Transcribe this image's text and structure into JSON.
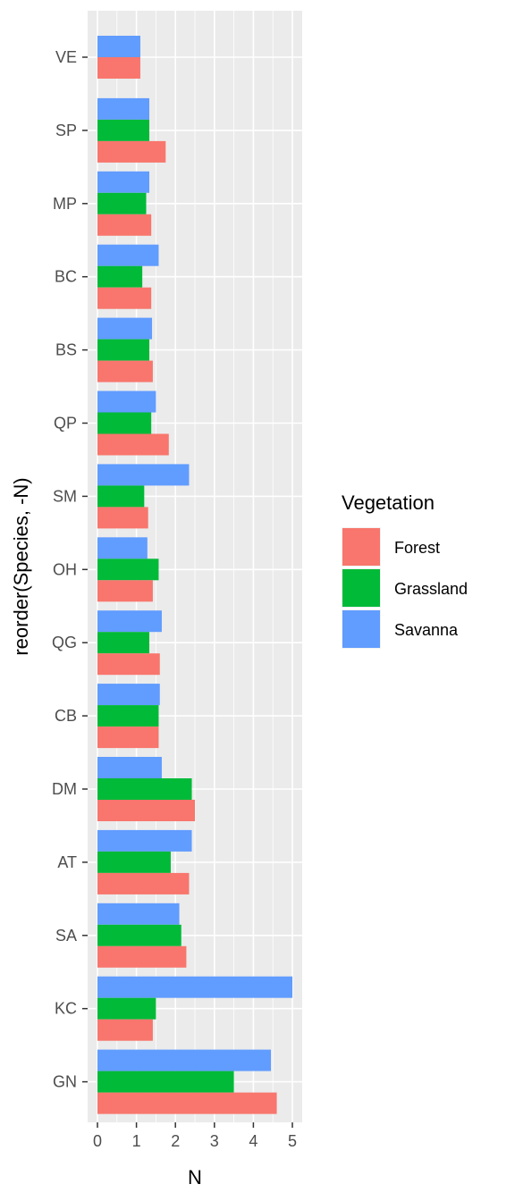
{
  "chart_data": {
    "type": "bar",
    "orientation": "horizontal",
    "xlabel": "N",
    "ylabel": "reorder(Species, -N)",
    "xlim": [
      0,
      5
    ],
    "x_ticks": [
      "0",
      "1",
      "2",
      "3",
      "4",
      "5"
    ],
    "categories": [
      "VE",
      "SP",
      "MP",
      "BC",
      "BS",
      "QP",
      "SM",
      "OH",
      "QG",
      "CB",
      "DM",
      "AT",
      "SA",
      "KC",
      "GN"
    ],
    "grid": true,
    "legend": {
      "title": "Vegetation",
      "position": "right",
      "entries": [
        "Forest",
        "Grassland",
        "Savanna"
      ]
    },
    "series": [
      {
        "name": "Forest",
        "color": "#F8766D",
        "values": [
          1.1,
          1.75,
          1.38,
          1.38,
          1.42,
          1.83,
          1.3,
          1.42,
          1.6,
          1.57,
          2.5,
          2.35,
          2.28,
          1.42,
          4.6
        ]
      },
      {
        "name": "Grassland",
        "color": "#00BA38",
        "values": [
          null,
          1.33,
          1.25,
          1.15,
          1.33,
          1.38,
          1.2,
          1.57,
          1.33,
          1.57,
          2.42,
          1.88,
          2.15,
          1.5,
          3.5
        ]
      },
      {
        "name": "Savanna",
        "color": "#619CFF",
        "values": [
          1.1,
          1.33,
          1.33,
          1.57,
          1.4,
          1.5,
          2.35,
          1.28,
          1.65,
          1.6,
          1.65,
          2.42,
          2.1,
          5.0,
          4.45
        ]
      }
    ]
  }
}
